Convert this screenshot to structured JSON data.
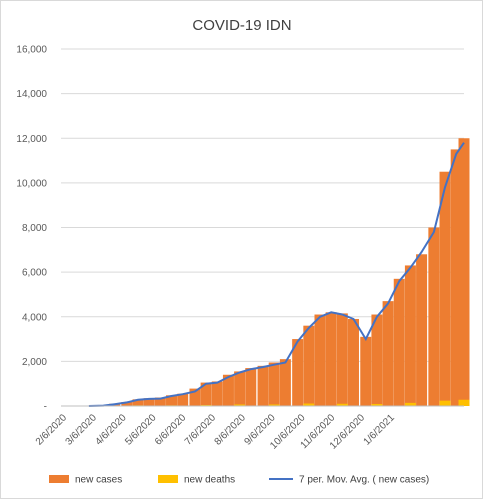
{
  "chart_data": {
    "type": "bar",
    "title": "COVID-19 IDN",
    "xlabel": "",
    "ylabel": "",
    "ylim": [
      0,
      16000
    ],
    "y_ticks": [
      "-",
      "2,000",
      "4,000",
      "6,000",
      "8,000",
      "10,000",
      "12,000",
      "14,000",
      "16,000"
    ],
    "x_ticks": [
      "2/6/2020",
      "3/6/2020",
      "4/6/2020",
      "5/6/2020",
      "6/6/2020",
      "7/6/2020",
      "8/6/2020",
      "9/6/2020",
      "10/6/2020",
      "11/6/2020",
      "12/6/2020",
      "1/6/2021"
    ],
    "x_range": [
      "2020-02-06",
      "2021-02-01"
    ],
    "grid": true,
    "legend_position": "bottom",
    "series": [
      {
        "name": "new cases",
        "color": "#ED7D31",
        "kind": "bar",
        "points": [
          [
            "2020-03-02",
            2
          ],
          [
            "2020-03-15",
            30
          ],
          [
            "2020-03-25",
            100
          ],
          [
            "2020-04-05",
            180
          ],
          [
            "2020-04-15",
            300
          ],
          [
            "2020-04-25",
            350
          ],
          [
            "2020-05-05",
            380
          ],
          [
            "2020-05-15",
            480
          ],
          [
            "2020-05-25",
            550
          ],
          [
            "2020-06-05",
            780
          ],
          [
            "2020-06-15",
            1050
          ],
          [
            "2020-06-25",
            1100
          ],
          [
            "2020-07-05",
            1400
          ],
          [
            "2020-07-15",
            1550
          ],
          [
            "2020-07-25",
            1700
          ],
          [
            "2020-08-05",
            1800
          ],
          [
            "2020-08-15",
            1950
          ],
          [
            "2020-08-25",
            2100
          ],
          [
            "2020-09-05",
            3000
          ],
          [
            "2020-09-15",
            3600
          ],
          [
            "2020-09-25",
            4100
          ],
          [
            "2020-10-05",
            4200
          ],
          [
            "2020-10-15",
            4150
          ],
          [
            "2020-10-25",
            3900
          ],
          [
            "2020-11-05",
            3100
          ],
          [
            "2020-11-15",
            4100
          ],
          [
            "2020-11-25",
            4700
          ],
          [
            "2020-12-05",
            5700
          ],
          [
            "2020-12-15",
            6300
          ],
          [
            "2020-12-25",
            6800
          ],
          [
            "2021-01-05",
            8000
          ],
          [
            "2021-01-15",
            10500
          ],
          [
            "2021-01-25",
            11500
          ],
          [
            "2021-02-01",
            12000
          ]
        ]
      },
      {
        "name": "new deaths",
        "color": "#FFC000",
        "kind": "bar",
        "points": [
          [
            "2020-03-15",
            2
          ],
          [
            "2020-04-15",
            30
          ],
          [
            "2020-05-15",
            30
          ],
          [
            "2020-06-15",
            45
          ],
          [
            "2020-07-15",
            70
          ],
          [
            "2020-08-15",
            70
          ],
          [
            "2020-09-15",
            110
          ],
          [
            "2020-10-15",
            100
          ],
          [
            "2020-11-15",
            90
          ],
          [
            "2020-12-15",
            140
          ],
          [
            "2021-01-15",
            240
          ],
          [
            "2021-02-01",
            280
          ]
        ]
      },
      {
        "name": "7 per. Mov. Avg. ( new cases)",
        "color": "#4472C4",
        "kind": "line",
        "points": [
          [
            "2020-03-02",
            0
          ],
          [
            "2020-03-15",
            20
          ],
          [
            "2020-03-25",
            80
          ],
          [
            "2020-04-05",
            160
          ],
          [
            "2020-04-15",
            280
          ],
          [
            "2020-04-25",
            320
          ],
          [
            "2020-05-05",
            330
          ],
          [
            "2020-05-15",
            450
          ],
          [
            "2020-05-25",
            530
          ],
          [
            "2020-06-05",
            650
          ],
          [
            "2020-06-15",
            1000
          ],
          [
            "2020-06-25",
            1050
          ],
          [
            "2020-07-05",
            1300
          ],
          [
            "2020-07-15",
            1500
          ],
          [
            "2020-07-25",
            1650
          ],
          [
            "2020-08-05",
            1750
          ],
          [
            "2020-08-15",
            1850
          ],
          [
            "2020-08-25",
            1950
          ],
          [
            "2020-09-05",
            2900
          ],
          [
            "2020-09-15",
            3500
          ],
          [
            "2020-09-25",
            4000
          ],
          [
            "2020-10-05",
            4200
          ],
          [
            "2020-10-15",
            4100
          ],
          [
            "2020-10-25",
            3900
          ],
          [
            "2020-11-05",
            3000
          ],
          [
            "2020-11-15",
            4000
          ],
          [
            "2020-11-25",
            4600
          ],
          [
            "2020-12-05",
            5600
          ],
          [
            "2020-12-15",
            6200
          ],
          [
            "2020-12-25",
            6900
          ],
          [
            "2021-01-05",
            7800
          ],
          [
            "2021-01-15",
            9800
          ],
          [
            "2021-01-25",
            11300
          ],
          [
            "2021-02-01",
            11800
          ]
        ]
      }
    ]
  }
}
